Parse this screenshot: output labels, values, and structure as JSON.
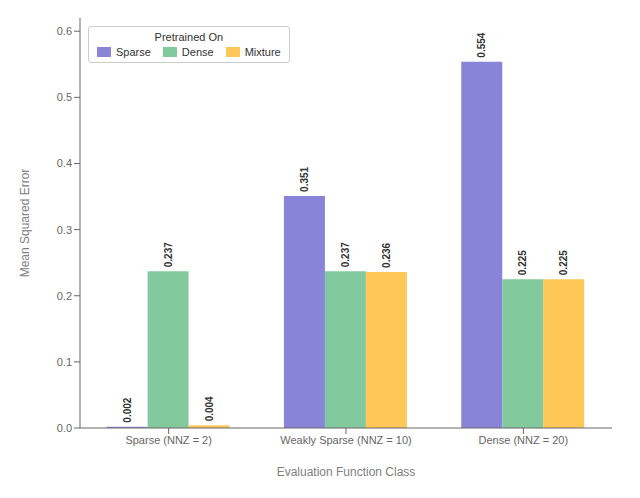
{
  "chart_data": {
    "type": "bar",
    "categories": [
      "Sparse (NNZ = 2)",
      "Weakly Sparse (NNZ = 10)",
      "Dense (NNZ = 20)"
    ],
    "series": [
      {
        "name": "Sparse",
        "values": [
          0.002,
          0.351,
          0.554
        ]
      },
      {
        "name": "Dense",
        "values": [
          0.237,
          0.237,
          0.225
        ]
      },
      {
        "name": "Mixture",
        "values": [
          0.004,
          0.236,
          0.225
        ]
      }
    ],
    "xlabel": "Evaluation Function Class",
    "ylabel": "Mean Squared Error",
    "legend_title": "Pretrained On",
    "legend": "upper left",
    "ylim": [
      0,
      0.62
    ],
    "yticks": [
      {
        "value": 0,
        "label": "0.0"
      },
      0.1,
      0.2,
      0.3,
      0.4,
      0.5,
      0.6
    ],
    "grid": false,
    "data_labels": true
  }
}
